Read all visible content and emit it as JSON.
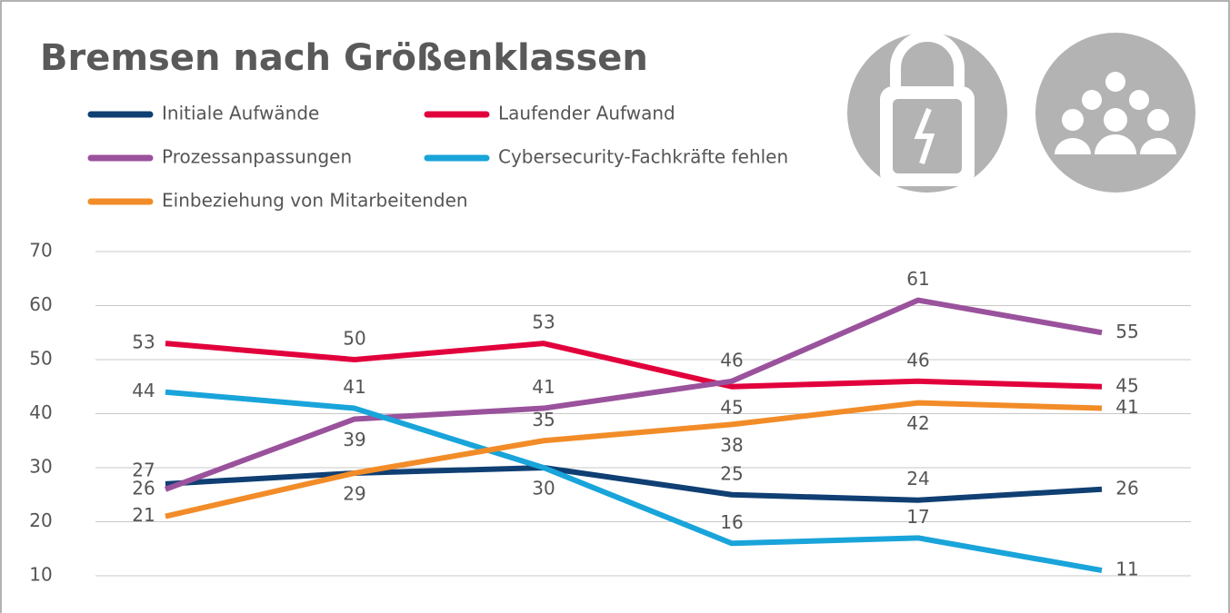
{
  "chart_data": {
    "type": "line",
    "title": "Bremsen nach Größenklassen",
    "categories": [
      null,
      null,
      null,
      null,
      null,
      null
    ],
    "ylim": [
      10,
      70
    ],
    "yticks": [
      10,
      20,
      30,
      40,
      50,
      60,
      70
    ],
    "grid": true,
    "legend": "top",
    "series": [
      {
        "name": "Initiale Aufwände",
        "color": "#0f3f73",
        "values": [
          27,
          29,
          30,
          25,
          24,
          26
        ],
        "value_labels": [
          "27",
          null,
          null,
          "25",
          "24",
          "26"
        ]
      },
      {
        "name": "Laufender Aufwand",
        "color": "#e2003c",
        "values": [
          53,
          50,
          53,
          45,
          46,
          45
        ]
      },
      {
        "name": "Prozessanpassungen",
        "color": "#9a529c",
        "values": [
          26,
          39,
          41,
          46,
          61,
          55
        ]
      },
      {
        "name": "Cybersecurity-Fachkräfte fehlen",
        "color": "#19a4da",
        "values": [
          44,
          41,
          30,
          16,
          17,
          11
        ]
      },
      {
        "name": "Einbeziehung von Mitarbeitenden",
        "color": "#f28c28",
        "values": [
          21,
          29,
          35,
          38,
          42,
          41
        ]
      }
    ]
  }
}
